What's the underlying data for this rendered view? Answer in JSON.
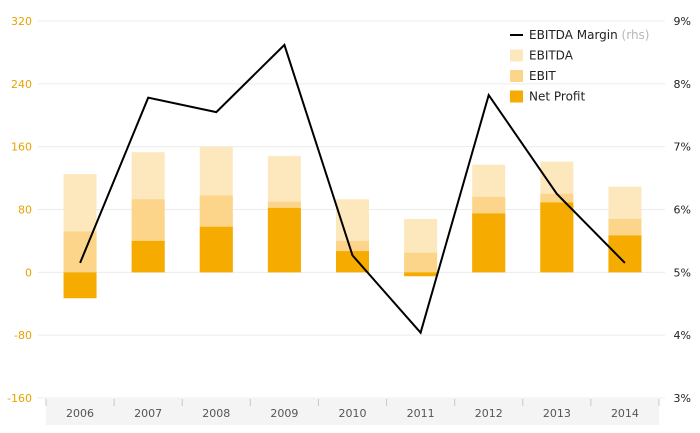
{
  "chart_data": {
    "type": "bar",
    "categories": [
      "2006",
      "2007",
      "2008",
      "2009",
      "2010",
      "2011",
      "2012",
      "2013",
      "2014"
    ],
    "series": [
      {
        "name": "EBITDA",
        "values": [
          125,
          153,
          160,
          148,
          93,
          68,
          137,
          141,
          109
        ]
      },
      {
        "name": "EBIT",
        "values": [
          52,
          93,
          98,
          90,
          40,
          25,
          96,
          100,
          68
        ]
      },
      {
        "name": "Net Profit",
        "values": [
          -33,
          40,
          58,
          82,
          27,
          -5,
          75,
          89,
          47
        ]
      },
      {
        "name": "EBITDA Margin",
        "axis": "right",
        "unit": "%",
        "values": [
          5.15,
          7.78,
          7.55,
          8.62,
          5.27,
          4.04,
          7.82,
          6.25,
          5.15
        ]
      }
    ],
    "left_axis": {
      "ticks": [
        "320",
        "240",
        "160",
        "80",
        "0",
        "-80",
        "-160"
      ],
      "range": [
        -160,
        320
      ]
    },
    "right_axis": {
      "ticks": [
        "9%",
        "8%",
        "7%",
        "6%",
        "5%",
        "4%",
        "3%"
      ],
      "range": [
        3,
        9
      ]
    },
    "legend": {
      "placement": "top-right",
      "items": [
        {
          "label": "EBITDA Margin",
          "suffix": " (rhs)",
          "kind": "line"
        },
        {
          "label": "EBITDA",
          "kind": "box"
        },
        {
          "label": "EBIT",
          "kind": "box"
        },
        {
          "label": "Net Profit",
          "kind": "box"
        }
      ]
    },
    "grid": true,
    "colors": {
      "ebitda": "#fde8bd",
      "ebit": "#fcd58a",
      "net_profit": "#f5ab00",
      "margin_line": "#000000",
      "left_tick": "#e8a200",
      "right_tick": "#222222",
      "grid": "#ececec",
      "axis_band": "#f4f4f4"
    }
  }
}
